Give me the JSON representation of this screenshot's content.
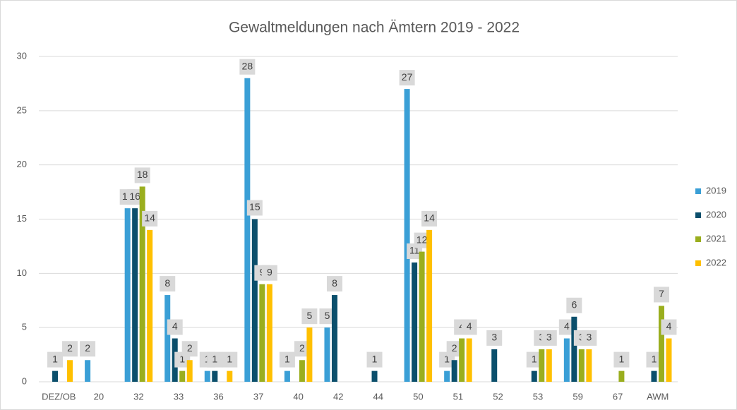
{
  "chart_data": {
    "type": "bar",
    "title": "Gewaltmeldungen nach Ämtern 2019 - 2022",
    "categories": [
      "DEZ/OB",
      "20",
      "32",
      "33",
      "36",
      "37",
      "40",
      "42",
      "44",
      "50",
      "51",
      "52",
      "53",
      "59",
      "67",
      "AWM"
    ],
    "series": [
      {
        "name": "2019",
        "color": "#3a9fd6",
        "values": [
          null,
          2,
          16,
          8,
          1,
          28,
          1,
          5,
          null,
          27,
          1,
          null,
          null,
          4,
          null,
          null
        ]
      },
      {
        "name": "2020",
        "color": "#0b4f6c",
        "values": [
          1,
          null,
          16,
          4,
          1,
          15,
          null,
          8,
          1,
          11,
          2,
          3,
          1,
          6,
          null,
          1
        ]
      },
      {
        "name": "2021",
        "color": "#9aae1e",
        "values": [
          null,
          null,
          18,
          1,
          null,
          9,
          2,
          null,
          null,
          12,
          4,
          null,
          3,
          3,
          1,
          7
        ]
      },
      {
        "name": "2022",
        "color": "#ffc000",
        "values": [
          2,
          null,
          14,
          2,
          1,
          9,
          5,
          null,
          null,
          14,
          4,
          null,
          3,
          3,
          null,
          4
        ]
      }
    ],
    "ylim": [
      0,
      30
    ],
    "yticks": [
      0,
      5,
      10,
      15,
      20,
      25,
      30
    ],
    "grid": true,
    "legend": "right"
  }
}
